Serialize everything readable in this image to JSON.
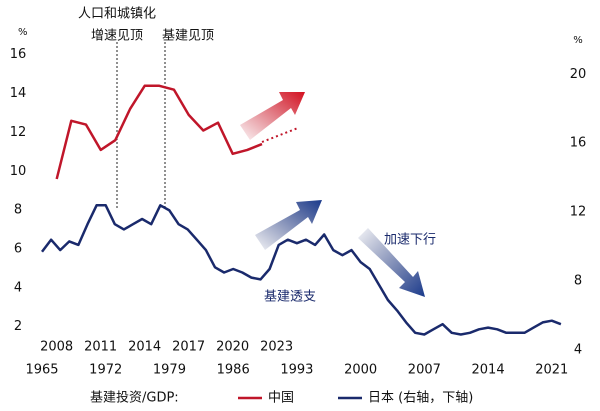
{
  "chart_data": {
    "type": "line",
    "y_unit": "%",
    "y2_unit": "%",
    "ylim": [
      0.8,
      16.5
    ],
    "yticks": [
      2,
      4,
      6,
      8,
      10,
      12,
      14,
      16
    ],
    "y2lim": [
      4,
      21.7
    ],
    "y2ticks": [
      4,
      8,
      12,
      16,
      20
    ],
    "xlim": [
      2007,
      2043
    ],
    "xticks": [
      2008,
      2011,
      2014,
      2017,
      2020,
      2023
    ],
    "x2lim": [
      1965,
      2023
    ],
    "x2ticks": [
      1965,
      1972,
      1979,
      1986,
      1993,
      2000,
      2007,
      2014,
      2021
    ],
    "legend_title": "基建投资/GDP:",
    "series": [
      {
        "name": "中国",
        "color": "#c0162a",
        "axis": "y",
        "x": [
          2008,
          2009,
          2010,
          2011,
          2012,
          2013,
          2014,
          2015,
          2016,
          2017,
          2018,
          2019,
          2020,
          2021,
          2022
        ],
        "values": [
          9.6,
          12.6,
          12.4,
          11.1,
          11.6,
          13.2,
          14.4,
          14.4,
          14.2,
          12.9,
          12.1,
          12.5,
          10.9,
          11.1,
          11.4
        ]
      },
      {
        "name": "日本 (右轴，下轴)",
        "color": "#1a2a6c",
        "axis": "y2",
        "x": [
          1965,
          1966,
          1967,
          1968,
          1969,
          1970,
          1971,
          1972,
          1973,
          1974,
          1975,
          1976,
          1977,
          1978,
          1979,
          1980,
          1981,
          1982,
          1983,
          1984,
          1985,
          1986,
          1987,
          1988,
          1989,
          1990,
          1991,
          1992,
          1993,
          1994,
          1995,
          1996,
          1997,
          1998,
          1999,
          2000,
          2001,
          2002,
          2003,
          2004,
          2005,
          2006,
          2007,
          2008,
          2009,
          2010,
          2011,
          2012,
          2013,
          2014,
          2015,
          2016,
          2017,
          2018,
          2019,
          2020,
          2021,
          2022
        ],
        "values": [
          9.7,
          10.4,
          9.8,
          10.3,
          10.1,
          11.3,
          12.4,
          12.4,
          11.3,
          11.0,
          11.3,
          11.6,
          11.3,
          12.4,
          12.1,
          11.3,
          11.0,
          10.4,
          9.8,
          8.8,
          8.5,
          8.7,
          8.5,
          8.2,
          8.1,
          8.7,
          10.1,
          10.4,
          10.2,
          10.4,
          10.1,
          10.7,
          9.8,
          9.5,
          9.8,
          9.1,
          8.7,
          7.8,
          6.9,
          6.3,
          5.6,
          5.0,
          4.9,
          5.2,
          5.5,
          5.0,
          4.9,
          5.0,
          5.2,
          5.3,
          5.2,
          5.0,
          5.0,
          5.0,
          5.3,
          5.6,
          5.7,
          5.5
        ]
      }
    ],
    "annotations": [
      "人口和城镇化",
      "增速见顶",
      "基建见顶",
      "加速下行",
      "基建透支"
    ]
  }
}
